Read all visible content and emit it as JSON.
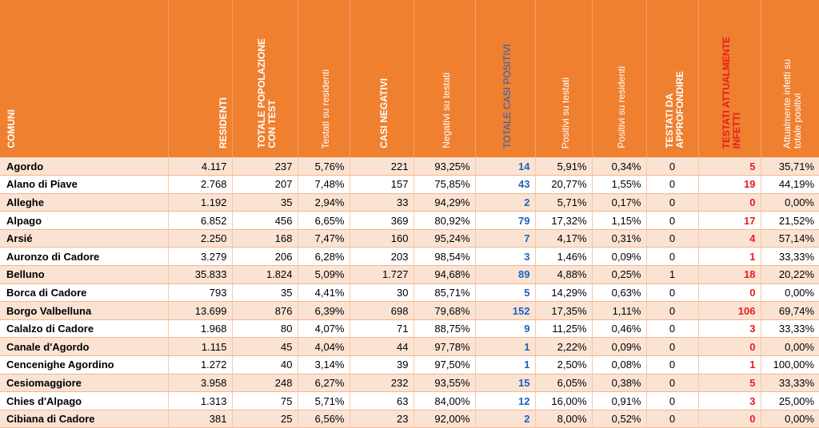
{
  "headers": [
    "COMUNI",
    "RESIDENTI",
    "TOTALE POPOLAZIONE\nCON TEST",
    "Testati su residenti",
    "CASI NEGATIVI",
    "Negativi su testati",
    "TOTALE CASI POSITIVI",
    "Positivi su testati",
    "Positivi su residenti",
    "TESTATI DA\nAPPROFONDIRE",
    "TESTATI ATTUALMENTE\nINFETTI",
    "Attualmente infetti su\ntotale positivi"
  ],
  "colors": {
    "header_bg": "#ef8030",
    "row_band": "#fbe3d3",
    "positive_blue": "#1f5fbf",
    "infected_red": "#e81c1c"
  },
  "rows": [
    [
      "Agordo",
      "4.117",
      "237",
      "5,76%",
      "221",
      "93,25%",
      "14",
      "5,91%",
      "0,34%",
      "0",
      "5",
      "35,71%"
    ],
    [
      "Alano di Piave",
      "2.768",
      "207",
      "7,48%",
      "157",
      "75,85%",
      "43",
      "20,77%",
      "1,55%",
      "0",
      "19",
      "44,19%"
    ],
    [
      "Alleghe",
      "1.192",
      "35",
      "2,94%",
      "33",
      "94,29%",
      "2",
      "5,71%",
      "0,17%",
      "0",
      "0",
      "0,00%"
    ],
    [
      "Alpago",
      "6.852",
      "456",
      "6,65%",
      "369",
      "80,92%",
      "79",
      "17,32%",
      "1,15%",
      "0",
      "17",
      "21,52%"
    ],
    [
      "Arsié",
      "2.250",
      "168",
      "7,47%",
      "160",
      "95,24%",
      "7",
      "4,17%",
      "0,31%",
      "0",
      "4",
      "57,14%"
    ],
    [
      "Auronzo di Cadore",
      "3.279",
      "206",
      "6,28%",
      "203",
      "98,54%",
      "3",
      "1,46%",
      "0,09%",
      "0",
      "1",
      "33,33%"
    ],
    [
      "Belluno",
      "35.833",
      "1.824",
      "5,09%",
      "1.727",
      "94,68%",
      "89",
      "4,88%",
      "0,25%",
      "1",
      "18",
      "20,22%"
    ],
    [
      "Borca di Cadore",
      "793",
      "35",
      "4,41%",
      "30",
      "85,71%",
      "5",
      "14,29%",
      "0,63%",
      "0",
      "0",
      "0,00%"
    ],
    [
      "Borgo Valbelluna",
      "13.699",
      "876",
      "6,39%",
      "698",
      "79,68%",
      "152",
      "17,35%",
      "1,11%",
      "0",
      "106",
      "69,74%"
    ],
    [
      "Calalzo di Cadore",
      "1.968",
      "80",
      "4,07%",
      "71",
      "88,75%",
      "9",
      "11,25%",
      "0,46%",
      "0",
      "3",
      "33,33%"
    ],
    [
      "Canale d'Agordo",
      "1.115",
      "45",
      "4,04%",
      "44",
      "97,78%",
      "1",
      "2,22%",
      "0,09%",
      "0",
      "0",
      "0,00%"
    ],
    [
      "Cencenighe Agordino",
      "1.272",
      "40",
      "3,14%",
      "39",
      "97,50%",
      "1",
      "2,50%",
      "0,08%",
      "0",
      "1",
      "100,00%"
    ],
    [
      "Cesiomaggiore",
      "3.958",
      "248",
      "6,27%",
      "232",
      "93,55%",
      "15",
      "6,05%",
      "0,38%",
      "0",
      "5",
      "33,33%"
    ],
    [
      "Chies d'Alpago",
      "1.313",
      "75",
      "5,71%",
      "63",
      "84,00%",
      "12",
      "16,00%",
      "0,91%",
      "0",
      "3",
      "25,00%"
    ],
    [
      "Cibiana di Cadore",
      "381",
      "25",
      "6,56%",
      "23",
      "92,00%",
      "2",
      "8,00%",
      "0,52%",
      "0",
      "0",
      "0,00%"
    ]
  ]
}
